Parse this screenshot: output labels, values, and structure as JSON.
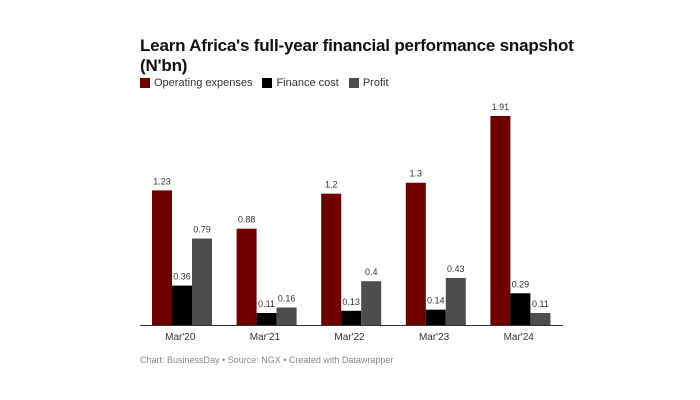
{
  "chart_data": {
    "type": "bar",
    "title": "Learn Africa's full-year financial performance snapshot (N'bn)",
    "categories": [
      "Mar'20",
      "Mar'21",
      "Mar'22",
      "Mar'23",
      "Mar'24"
    ],
    "series": [
      {
        "name": "Operating expenses",
        "color": "#6e0000",
        "values": [
          1.23,
          0.88,
          1.2,
          1.3,
          1.91
        ]
      },
      {
        "name": "Finance cost",
        "color": "#000000",
        "values": [
          0.36,
          0.11,
          0.13,
          0.14,
          0.29
        ]
      },
      {
        "name": "Profit",
        "color": "#4d4d4d",
        "values": [
          0.79,
          0.16,
          0.4,
          0.43,
          0.11
        ]
      }
    ],
    "xlabel": "",
    "ylabel": "",
    "ylim": [
      0,
      1.91
    ],
    "grid": false,
    "legend": "top-left"
  },
  "footer": {
    "text": "Chart: BusinessDay • Source: NGX • Created with Datawrapper"
  }
}
